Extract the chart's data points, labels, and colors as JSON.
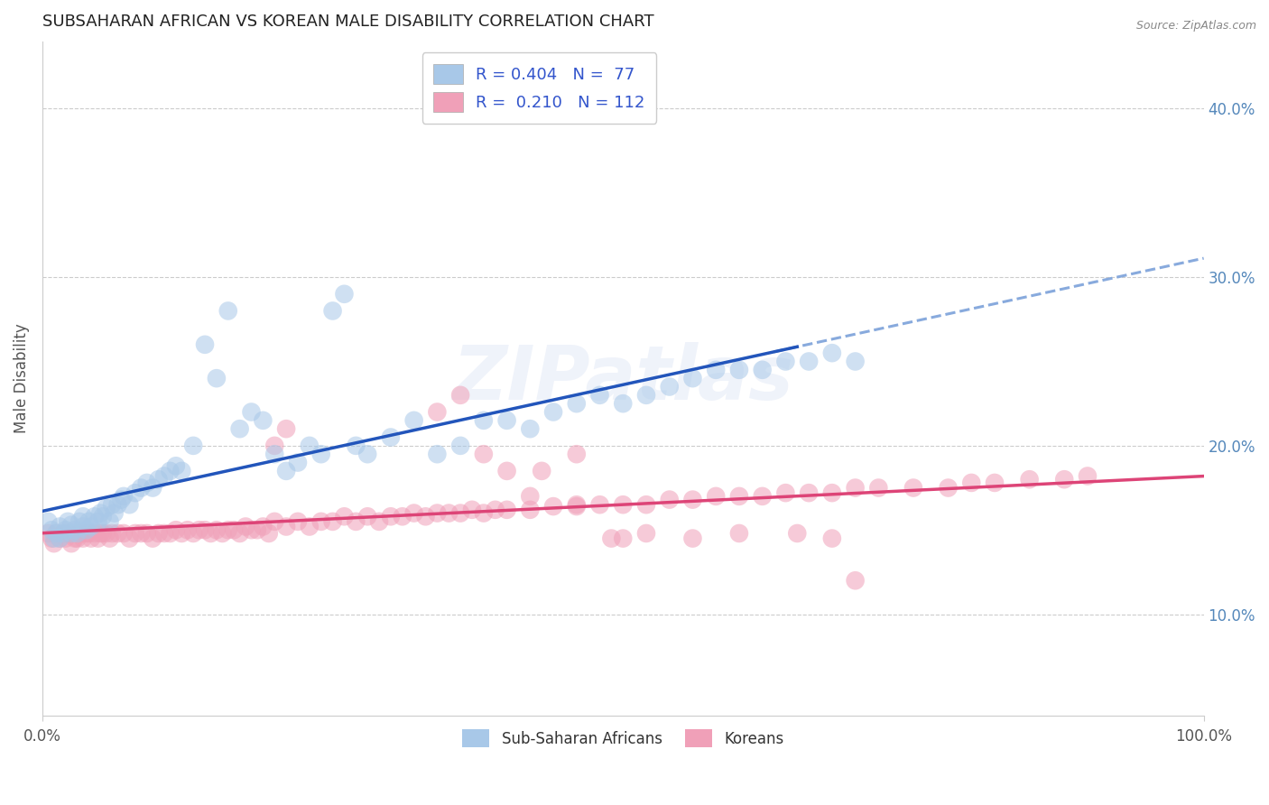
{
  "title": "SUBSAHARAN AFRICAN VS KOREAN MALE DISABILITY CORRELATION CHART",
  "source": "Source: ZipAtlas.com",
  "ylabel": "Male Disability",
  "watermark": "ZIPatlas",
  "blue_color": "#a8c8e8",
  "pink_color": "#f0a0b8",
  "blue_line_color": "#2255bb",
  "pink_line_color": "#dd4477",
  "dashed_line_color": "#88aadd",
  "bg_color": "#ffffff",
  "grid_color": "#cccccc",
  "title_color": "#222222",
  "legend_text_color": "#3355cc",
  "right_tick_color": "#5588bb",
  "xmin": 0.0,
  "xmax": 1.0,
  "ymin": 0.04,
  "ymax": 0.44,
  "ytick_vals": [
    0.1,
    0.2,
    0.3,
    0.4
  ],
  "blue_scatter_x": [
    0.005,
    0.008,
    0.01,
    0.012,
    0.015,
    0.015,
    0.018,
    0.02,
    0.022,
    0.025,
    0.025,
    0.028,
    0.03,
    0.032,
    0.035,
    0.035,
    0.038,
    0.04,
    0.042,
    0.045,
    0.048,
    0.05,
    0.052,
    0.055,
    0.058,
    0.06,
    0.062,
    0.065,
    0.068,
    0.07,
    0.075,
    0.08,
    0.085,
    0.09,
    0.095,
    0.1,
    0.105,
    0.11,
    0.115,
    0.12,
    0.13,
    0.14,
    0.15,
    0.16,
    0.17,
    0.18,
    0.19,
    0.2,
    0.21,
    0.22,
    0.23,
    0.24,
    0.25,
    0.26,
    0.27,
    0.28,
    0.3,
    0.32,
    0.34,
    0.36,
    0.38,
    0.4,
    0.42,
    0.44,
    0.46,
    0.48,
    0.5,
    0.52,
    0.54,
    0.56,
    0.58,
    0.6,
    0.62,
    0.64,
    0.66,
    0.68,
    0.7
  ],
  "blue_scatter_y": [
    0.155,
    0.15,
    0.145,
    0.148,
    0.145,
    0.152,
    0.148,
    0.15,
    0.155,
    0.148,
    0.153,
    0.15,
    0.148,
    0.155,
    0.152,
    0.158,
    0.15,
    0.155,
    0.152,
    0.158,
    0.155,
    0.16,
    0.158,
    0.163,
    0.155,
    0.165,
    0.16,
    0.165,
    0.168,
    0.17,
    0.165,
    0.172,
    0.175,
    0.178,
    0.175,
    0.18,
    0.182,
    0.185,
    0.188,
    0.185,
    0.2,
    0.26,
    0.24,
    0.28,
    0.21,
    0.22,
    0.215,
    0.195,
    0.185,
    0.19,
    0.2,
    0.195,
    0.28,
    0.29,
    0.2,
    0.195,
    0.205,
    0.215,
    0.195,
    0.2,
    0.215,
    0.215,
    0.21,
    0.22,
    0.225,
    0.23,
    0.225,
    0.23,
    0.235,
    0.24,
    0.245,
    0.245,
    0.245,
    0.25,
    0.25,
    0.255,
    0.25
  ],
  "pink_scatter_x": [
    0.005,
    0.008,
    0.01,
    0.012,
    0.015,
    0.018,
    0.02,
    0.022,
    0.025,
    0.028,
    0.03,
    0.032,
    0.035,
    0.038,
    0.04,
    0.042,
    0.045,
    0.048,
    0.05,
    0.052,
    0.055,
    0.058,
    0.06,
    0.065,
    0.07,
    0.075,
    0.08,
    0.085,
    0.09,
    0.095,
    0.1,
    0.105,
    0.11,
    0.115,
    0.12,
    0.125,
    0.13,
    0.135,
    0.14,
    0.145,
    0.15,
    0.155,
    0.16,
    0.165,
    0.17,
    0.175,
    0.18,
    0.185,
    0.19,
    0.195,
    0.2,
    0.21,
    0.22,
    0.23,
    0.24,
    0.25,
    0.26,
    0.27,
    0.28,
    0.29,
    0.3,
    0.31,
    0.32,
    0.33,
    0.34,
    0.35,
    0.36,
    0.37,
    0.38,
    0.39,
    0.4,
    0.42,
    0.44,
    0.46,
    0.48,
    0.5,
    0.52,
    0.54,
    0.56,
    0.58,
    0.6,
    0.62,
    0.64,
    0.66,
    0.68,
    0.7,
    0.72,
    0.75,
    0.78,
    0.8,
    0.82,
    0.85,
    0.88,
    0.9,
    0.42,
    0.46,
    0.2,
    0.21,
    0.34,
    0.36,
    0.38,
    0.4,
    0.43,
    0.46,
    0.49,
    0.5,
    0.52,
    0.56,
    0.6,
    0.65,
    0.68,
    0.7
  ],
  "pink_scatter_y": [
    0.148,
    0.145,
    0.142,
    0.148,
    0.145,
    0.148,
    0.145,
    0.148,
    0.142,
    0.145,
    0.145,
    0.148,
    0.145,
    0.148,
    0.148,
    0.145,
    0.148,
    0.145,
    0.148,
    0.148,
    0.148,
    0.145,
    0.148,
    0.148,
    0.148,
    0.145,
    0.148,
    0.148,
    0.148,
    0.145,
    0.148,
    0.148,
    0.148,
    0.15,
    0.148,
    0.15,
    0.148,
    0.15,
    0.15,
    0.148,
    0.15,
    0.148,
    0.15,
    0.15,
    0.148,
    0.152,
    0.15,
    0.15,
    0.152,
    0.148,
    0.155,
    0.152,
    0.155,
    0.152,
    0.155,
    0.155,
    0.158,
    0.155,
    0.158,
    0.155,
    0.158,
    0.158,
    0.16,
    0.158,
    0.16,
    0.16,
    0.16,
    0.162,
    0.16,
    0.162,
    0.162,
    0.162,
    0.164,
    0.164,
    0.165,
    0.165,
    0.165,
    0.168,
    0.168,
    0.17,
    0.17,
    0.17,
    0.172,
    0.172,
    0.172,
    0.175,
    0.175,
    0.175,
    0.175,
    0.178,
    0.178,
    0.18,
    0.18,
    0.182,
    0.17,
    0.195,
    0.2,
    0.21,
    0.22,
    0.23,
    0.195,
    0.185,
    0.185,
    0.165,
    0.145,
    0.145,
    0.148,
    0.145,
    0.148,
    0.148,
    0.145,
    0.12
  ]
}
